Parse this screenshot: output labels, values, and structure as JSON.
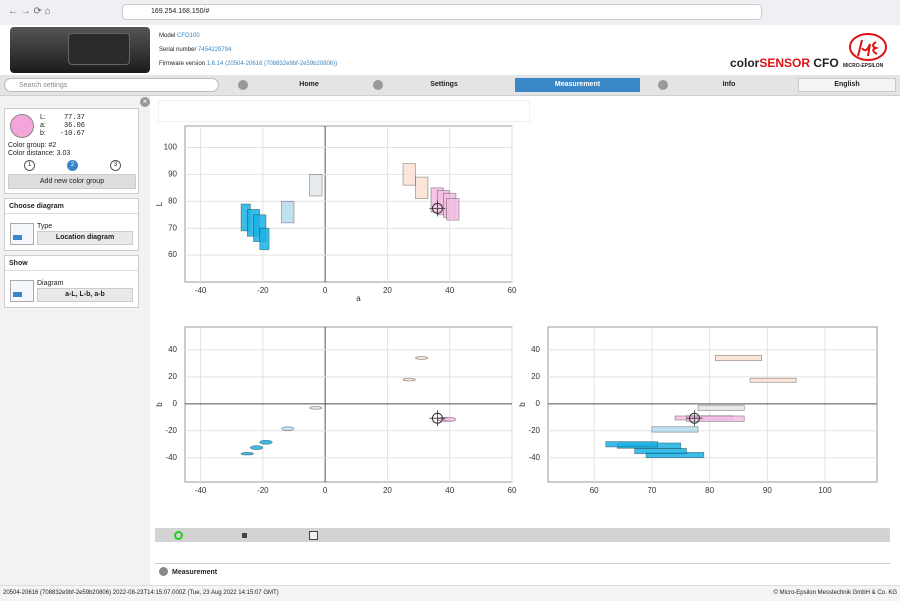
{
  "browser": {
    "url": "169.254.168.150/#"
  },
  "header": {
    "model_label": "Model",
    "model": "CFO100",
    "serial_label": "Serial number",
    "serial": "7454229794",
    "firmware_label": "Firmware version",
    "firmware": "1.6.14 (20504-20616 (708832e9bf-2e59b20806))",
    "brand_prefix": "color",
    "brand_highlight": "SENSOR",
    "brand_suffix": "CFO",
    "logo_text": "MICRO-EPSILON"
  },
  "nav": {
    "search_placeholder": "Search settings",
    "tabs": [
      "Home",
      "Settings",
      "Measurement",
      "Info"
    ],
    "active_tab": 2,
    "language": "English"
  },
  "sidebar": {
    "swatch_color": "#f4a6da",
    "measurement": {
      "labels": [
        "L:",
        "a:",
        "b:"
      ],
      "values": [
        77.37,
        36.06,
        -10.67
      ]
    },
    "color_group_label": "Color group:",
    "color_group": "#2",
    "color_distance_label": "Color distance:",
    "color_distance": 3.03,
    "groups": [
      "1",
      "2",
      "3"
    ],
    "active_group": 1,
    "add_button": "Add new color group",
    "choose_diagram": {
      "title": "Choose diagram",
      "label": "Type",
      "value": "Location diagram"
    },
    "show": {
      "title": "Show",
      "label": "Diagram",
      "value": "a-L, L-b, a-b"
    }
  },
  "charts": [
    {
      "type": "box",
      "x_label": "a",
      "y_label": "L",
      "xlim": [
        -45,
        60
      ],
      "ylim": [
        50,
        108
      ],
      "xticks": [
        -40,
        -20,
        0,
        20,
        40,
        60
      ],
      "yticks": [
        60,
        70,
        80,
        90,
        100
      ],
      "grid": true,
      "series": [
        {
          "color": "#1ab2e4",
          "boxes": [
            [
              -27,
              -24,
              69,
              79
            ],
            [
              -25,
              -21,
              67,
              77
            ],
            [
              -23,
              -19,
              65,
              75
            ],
            [
              -21,
              -18,
              62,
              70
            ]
          ]
        },
        {
          "color": "#b6dcee",
          "boxes": [
            [
              -14,
              -10,
              72,
              80
            ]
          ]
        },
        {
          "color": "#e3e8ea",
          "boxes": [
            [
              -5,
              -1,
              82,
              90
            ]
          ]
        },
        {
          "color": "#fbe0d2",
          "boxes": [
            [
              25,
              29,
              86,
              94
            ],
            [
              29,
              33,
              81,
              89
            ]
          ]
        },
        {
          "color": "#f3bde3",
          "boxes": [
            [
              34,
              38,
              76,
              85
            ],
            [
              36,
              40,
              75,
              84
            ],
            [
              38,
              42,
              74,
              83
            ],
            [
              39,
              43,
              73,
              81
            ]
          ]
        }
      ]
    },
    {
      "type": "ellipse",
      "y_label": "b",
      "xlim": [
        -45,
        60
      ],
      "ylim": [
        -58,
        57
      ],
      "xticks": [
        -40,
        -20,
        0,
        20,
        40,
        60
      ],
      "yticks": [
        -40,
        -20,
        0,
        20,
        40
      ],
      "grid": true,
      "series": [
        {
          "color": "#1ab2e4",
          "boxes": [
            [
              -27,
              -23,
              -38,
              -36
            ],
            [
              -24,
              -20,
              -34,
              -31
            ],
            [
              -21,
              -17,
              -30,
              -27
            ]
          ]
        },
        {
          "color": "#b6dcee",
          "boxes": [
            [
              -14,
              -10,
              -20,
              -17
            ]
          ]
        },
        {
          "color": "#e3e8ea",
          "boxes": [
            [
              -5,
              -1,
              -4,
              -2
            ]
          ]
        },
        {
          "color": "#fbe0d2",
          "boxes": [
            [
              29,
              33,
              33,
              35
            ],
            [
              25,
              29,
              17,
              19
            ]
          ]
        },
        {
          "color": "#f3bde3",
          "boxes": [
            [
              36,
              40,
              -13,
              -10
            ],
            [
              38,
              42,
              -13,
              -10
            ]
          ]
        }
      ]
    },
    {
      "type": "box",
      "y_label": "b",
      "xlim": [
        52,
        109
      ],
      "ylim": [
        -58,
        57
      ],
      "xticks": [
        60,
        70,
        80,
        90,
        100
      ],
      "yticks": [
        -40,
        -20,
        0,
        20,
        40
      ],
      "grid": true,
      "series": [
        {
          "color": "#1ab2e4",
          "boxes": [
            [
              69,
              79,
              -40,
              -36
            ],
            [
              67,
              76,
              -37,
              -33
            ],
            [
              64,
              75,
              -33,
              -29
            ],
            [
              62,
              71,
              -32,
              -28
            ]
          ]
        },
        {
          "color": "#b6dcee",
          "boxes": [
            [
              70,
              78,
              -21,
              -17
            ]
          ]
        },
        {
          "color": "#e3e8ea",
          "boxes": [
            [
              78,
              86,
              -5,
              -1
            ]
          ]
        },
        {
          "color": "#fbe0d2",
          "boxes": [
            [
              81,
              89,
              32,
              36
            ],
            [
              87,
              95,
              16,
              19
            ]
          ]
        },
        {
          "color": "#f3bde3",
          "boxes": [
            [
              74,
              84,
              -12,
              -9
            ],
            [
              76,
              86,
              -13,
              -9
            ]
          ]
        }
      ]
    }
  ],
  "panel": {
    "title": "Measurement"
  },
  "status": {
    "left": "20504-20616 (708832e9bf-2e59b20806) 2022-08-23T14:15:07.000Z (Tue, 23 Aug 2022 14:15:07 GMT)",
    "right": "© Micro-Epsilon Messtechnik GmbH & Co. KG"
  }
}
